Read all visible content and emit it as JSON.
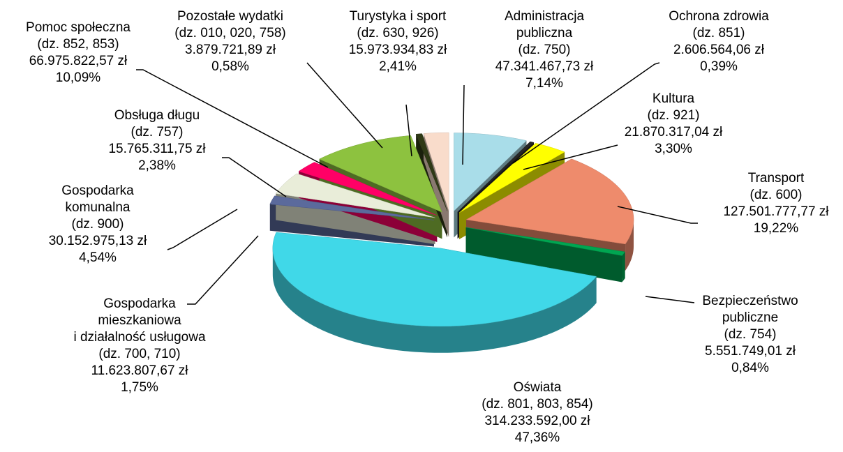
{
  "chart_data": {
    "type": "pie",
    "categories": [
      "Administracja publiczna",
      "Ochrona zdrowia",
      "Kultura",
      "Transport",
      "Bezpieczeństwo publiczne",
      "Oświata",
      "Gospodarka mieszkaniowa i działalność usługowa",
      "Gospodarka komunalna",
      "Obsługa długu",
      "Pomoc społeczna",
      "Pozostałe wydatki",
      "Turystyka i sport"
    ],
    "codes": [
      "(dz. 750)",
      "(dz. 851)",
      "(dz. 921)",
      "(dz. 600)",
      "(dz. 754)",
      "(dz. 801, 803, 854)",
      "(dz. 700, 710)",
      "(dz. 900)",
      "(dz. 757)",
      "(dz. 852, 853)",
      "(dz. 010, 020, 758)",
      "(dz. 630, 926)"
    ],
    "amount_labels": [
      "47.341.467,73 zł",
      "2.606.564,06 zł",
      "21.870.317,04 zł",
      "127.501.777,77 zł",
      "5.551.749,01 zł",
      "314.233.592,00 zł",
      "11.623.807,67 zł",
      "30.152.975,13 zł",
      "15.765.311,75 zł",
      "66.975.822,57 zł",
      "3.879.721,89 zł",
      "15.973.934,83 zł"
    ],
    "values": [
      7.14,
      0.39,
      3.3,
      19.22,
      0.84,
      47.36,
      1.75,
      4.54,
      2.38,
      10.09,
      0.58,
      2.41
    ],
    "value_labels": [
      "7,14%",
      "0,39%",
      "3,30%",
      "19,22%",
      "0,84%",
      "47,36%",
      "1,75%",
      "4,54%",
      "2,38%",
      "10,09%",
      "0,58%",
      "2,41%"
    ],
    "colors": [
      "#a9dde9",
      "#262626",
      "#ffff00",
      "#ee8b6c",
      "#00a651",
      "#40d8e8",
      "#5b6a9c",
      "#e9edd9",
      "#ff0066",
      "#8dc23f",
      "#2f3a16",
      "#f9dccb"
    ]
  }
}
